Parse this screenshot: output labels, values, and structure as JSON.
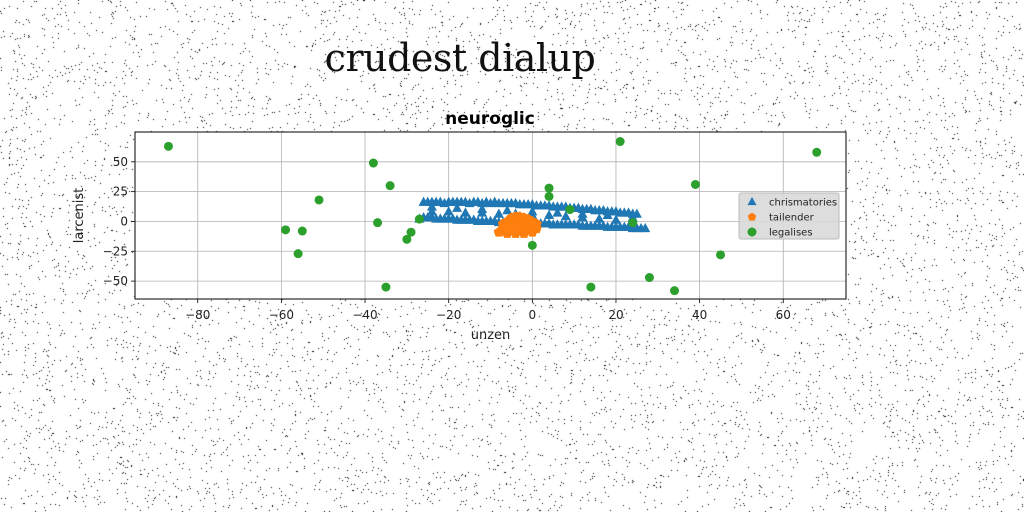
{
  "page": {
    "title": "crudest dialup"
  },
  "chart_data": {
    "type": "scatter",
    "title": "neuroglic",
    "xlabel": "unzen",
    "ylabel": "larcenist",
    "xlim": [
      -95,
      75
    ],
    "ylim": [
      -65,
      75
    ],
    "xticks": [
      -80,
      -60,
      -40,
      -20,
      0,
      20,
      40,
      60
    ],
    "yticks": [
      -50,
      -25,
      0,
      25,
      50
    ],
    "grid": true,
    "legend": {
      "placement": "right"
    },
    "series": [
      {
        "name": "chrismatories",
        "marker": "triangle",
        "color": "#1f77b4",
        "points": [
          [
            -26,
            16
          ],
          [
            -25,
            16
          ],
          [
            -24,
            16
          ],
          [
            -23,
            16
          ],
          [
            -22,
            16
          ],
          [
            -21,
            15
          ],
          [
            -20,
            16
          ],
          [
            -19,
            16
          ],
          [
            -18,
            16
          ],
          [
            -17,
            16
          ],
          [
            -16,
            16
          ],
          [
            -15,
            15
          ],
          [
            -14,
            16
          ],
          [
            -13,
            16
          ],
          [
            -12,
            15
          ],
          [
            -11,
            16
          ],
          [
            -10,
            15
          ],
          [
            -9,
            16
          ],
          [
            -8,
            15
          ],
          [
            -7,
            15
          ],
          [
            -6,
            15
          ],
          [
            -5,
            15
          ],
          [
            -4,
            15
          ],
          [
            -3,
            14
          ],
          [
            -2,
            14
          ],
          [
            -1,
            14
          ],
          [
            0,
            14
          ],
          [
            1,
            13
          ],
          [
            2,
            13
          ],
          [
            3,
            13
          ],
          [
            4,
            13
          ],
          [
            5,
            12
          ],
          [
            6,
            12
          ],
          [
            7,
            12
          ],
          [
            8,
            12
          ],
          [
            9,
            11
          ],
          [
            10,
            11
          ],
          [
            11,
            11
          ],
          [
            12,
            10
          ],
          [
            13,
            10
          ],
          [
            14,
            10
          ],
          [
            15,
            9
          ],
          [
            16,
            9
          ],
          [
            17,
            9
          ],
          [
            18,
            8
          ],
          [
            19,
            8
          ],
          [
            20,
            8
          ],
          [
            21,
            7
          ],
          [
            22,
            7
          ],
          [
            23,
            7
          ],
          [
            24,
            6
          ],
          [
            25,
            6
          ],
          [
            -27,
            2
          ],
          [
            -26,
            3
          ],
          [
            -25,
            3
          ],
          [
            -24,
            3
          ],
          [
            -23,
            2
          ],
          [
            -22,
            2
          ],
          [
            -21,
            2
          ],
          [
            -20,
            2
          ],
          [
            -19,
            2
          ],
          [
            -18,
            1
          ],
          [
            -17,
            1
          ],
          [
            -16,
            1
          ],
          [
            -15,
            1
          ],
          [
            -14,
            1
          ],
          [
            -13,
            0
          ],
          [
            -12,
            0
          ],
          [
            -11,
            0
          ],
          [
            -10,
            0
          ],
          [
            -9,
            0
          ],
          [
            -8,
            -1
          ],
          [
            -7,
            -1
          ],
          [
            -6,
            -1
          ],
          [
            -5,
            -1
          ],
          [
            -4,
            -1
          ],
          [
            -3,
            -2
          ],
          [
            -2,
            -2
          ],
          [
            -1,
            -2
          ],
          [
            0,
            -2
          ],
          [
            1,
            -2
          ],
          [
            2,
            -2
          ],
          [
            3,
            -2
          ],
          [
            4,
            -2
          ],
          [
            5,
            -3
          ],
          [
            6,
            -3
          ],
          [
            7,
            -3
          ],
          [
            8,
            -3
          ],
          [
            9,
            -3
          ],
          [
            10,
            -3
          ],
          [
            11,
            -3
          ],
          [
            12,
            -4
          ],
          [
            13,
            -4
          ],
          [
            14,
            -4
          ],
          [
            15,
            -4
          ],
          [
            16,
            -4
          ],
          [
            17,
            -4
          ],
          [
            18,
            -5
          ],
          [
            19,
            -5
          ],
          [
            20,
            -5
          ],
          [
            21,
            -5
          ],
          [
            22,
            -5
          ],
          [
            23,
            -5
          ],
          [
            24,
            -6
          ],
          [
            25,
            -6
          ],
          [
            26,
            -6
          ],
          [
            27,
            -6
          ],
          [
            -24,
            8
          ],
          [
            -20,
            8
          ],
          [
            -16,
            7
          ],
          [
            -12,
            7
          ],
          [
            -8,
            6
          ],
          [
            -4,
            6
          ],
          [
            0,
            5
          ],
          [
            4,
            5
          ],
          [
            8,
            4
          ],
          [
            12,
            3
          ],
          [
            16,
            2
          ],
          [
            20,
            1
          ],
          [
            24,
            0
          ],
          [
            -24,
            12
          ],
          [
            -18,
            11
          ],
          [
            -12,
            10
          ],
          [
            -6,
            9
          ],
          [
            0,
            8
          ],
          [
            6,
            7
          ],
          [
            12,
            6
          ],
          [
            18,
            5
          ],
          [
            24,
            3
          ]
        ]
      },
      {
        "name": "tailender",
        "marker": "pentagon",
        "color": "#ff7f0e",
        "points": [
          [
            -8,
            -9
          ],
          [
            -7,
            -5
          ],
          [
            -6,
            0
          ],
          [
            -5,
            3
          ],
          [
            -4,
            4
          ],
          [
            -3,
            4
          ],
          [
            -2,
            3
          ],
          [
            -1,
            2
          ],
          [
            0,
            0
          ],
          [
            1,
            -2
          ],
          [
            1,
            -6
          ],
          [
            0,
            -9
          ],
          [
            -2,
            -10
          ],
          [
            -4,
            -10
          ],
          [
            -6,
            -10
          ],
          [
            -7,
            -8
          ],
          [
            -5,
            -4
          ],
          [
            -3,
            -3
          ],
          [
            -1,
            -5
          ],
          [
            -4,
            0
          ],
          [
            -2,
            -7
          ],
          [
            -6,
            -6
          ],
          [
            -3,
            -8
          ],
          [
            -1,
            -1
          ],
          [
            -7,
            -2
          ]
        ]
      },
      {
        "name": "legalises",
        "marker": "circle",
        "color": "#2ca02c",
        "points": [
          [
            -87,
            63
          ],
          [
            -59,
            -7
          ],
          [
            -55,
            -8
          ],
          [
            -56,
            -27
          ],
          [
            -51,
            18
          ],
          [
            -38,
            49
          ],
          [
            -37,
            -1
          ],
          [
            -35,
            -55
          ],
          [
            -34,
            30
          ],
          [
            -30,
            -15
          ],
          [
            -29,
            -9
          ],
          [
            -27,
            2
          ],
          [
            0,
            -20
          ],
          [
            4,
            28
          ],
          [
            4,
            21
          ],
          [
            9,
            10
          ],
          [
            14,
            -55
          ],
          [
            21,
            67
          ],
          [
            24,
            -1
          ],
          [
            28,
            -47
          ],
          [
            34,
            -58
          ],
          [
            39,
            31
          ],
          [
            45,
            -28
          ],
          [
            68,
            58
          ]
        ]
      }
    ]
  }
}
